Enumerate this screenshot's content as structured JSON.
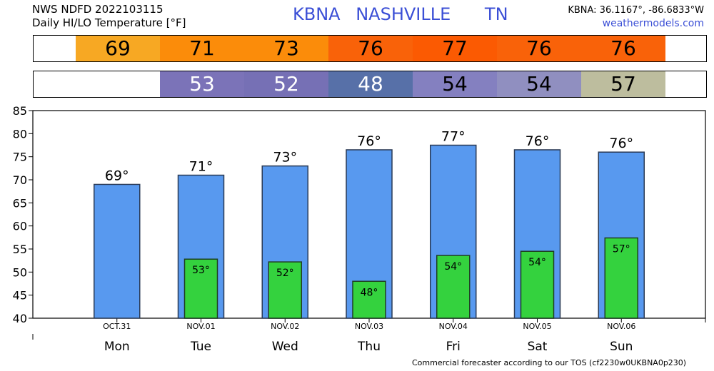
{
  "header": {
    "line1": "NWS NDFD 2022103115",
    "line2": "Daily HI/LO Temperature [°F]",
    "station": "KBNA",
    "city": "NASHVILLE",
    "state": "TN",
    "coords": "KBNA: 36.1167°, -86.6833°W",
    "site": "weathermodels.com"
  },
  "hi_strip": [
    {
      "value": "69",
      "color": "#f7a823"
    },
    {
      "value": "71",
      "color": "#fb8c0a"
    },
    {
      "value": "73",
      "color": "#fb8c0a"
    },
    {
      "value": "76",
      "color": "#f96209"
    },
    {
      "value": "77",
      "color": "#fb5a02"
    },
    {
      "value": "76",
      "color": "#f96209"
    },
    {
      "value": "76",
      "color": "#f96209"
    }
  ],
  "lo_strip": [
    {
      "value": "",
      "color": "#ffffff",
      "text_color": "#000000"
    },
    {
      "value": "53",
      "color": "#7b73b8",
      "text_color": "#ffffff"
    },
    {
      "value": "52",
      "color": "#7670b5",
      "text_color": "#ffffff"
    },
    {
      "value": "48",
      "color": "#5770a8",
      "text_color": "#ffffff"
    },
    {
      "value": "54",
      "color": "#8480c0",
      "text_color": "#000000"
    },
    {
      "value": "54",
      "color": "#908fc0",
      "text_color": "#000000"
    },
    {
      "value": "57",
      "color": "#bdbd9e",
      "text_color": "#000000"
    }
  ],
  "chart_data": {
    "type": "bar",
    "categories": [
      "Mon",
      "Tue",
      "Wed",
      "Thu",
      "Fri",
      "Sat",
      "Sun"
    ],
    "dates": [
      "OCT.31",
      "NOV.01",
      "NOV.02",
      "NOV.03",
      "NOV.04",
      "NOV.05",
      "NOV.06"
    ],
    "series": [
      {
        "values": [
          69,
          71,
          73,
          76.5,
          77.5,
          76.5,
          76
        ],
        "labels": [
          "69°",
          "71°",
          "73°",
          "76°",
          "77°",
          "76°",
          "76°"
        ],
        "color": "#5899ef"
      },
      {
        "values": [
          null,
          52.8,
          52.2,
          48,
          53.6,
          54.5,
          57.4
        ],
        "labels": [
          "",
          "53°",
          "52°",
          "48°",
          "54°",
          "54°",
          "57°"
        ],
        "color": "#34d23e"
      }
    ],
    "ylim": [
      40,
      85
    ],
    "yticks": [
      40,
      45,
      50,
      55,
      60,
      65,
      70,
      75,
      80,
      85
    ],
    "grid": false
  },
  "footer": "Commercial forecaster according to our TOS (cf2230w0UKBNA0p230)"
}
